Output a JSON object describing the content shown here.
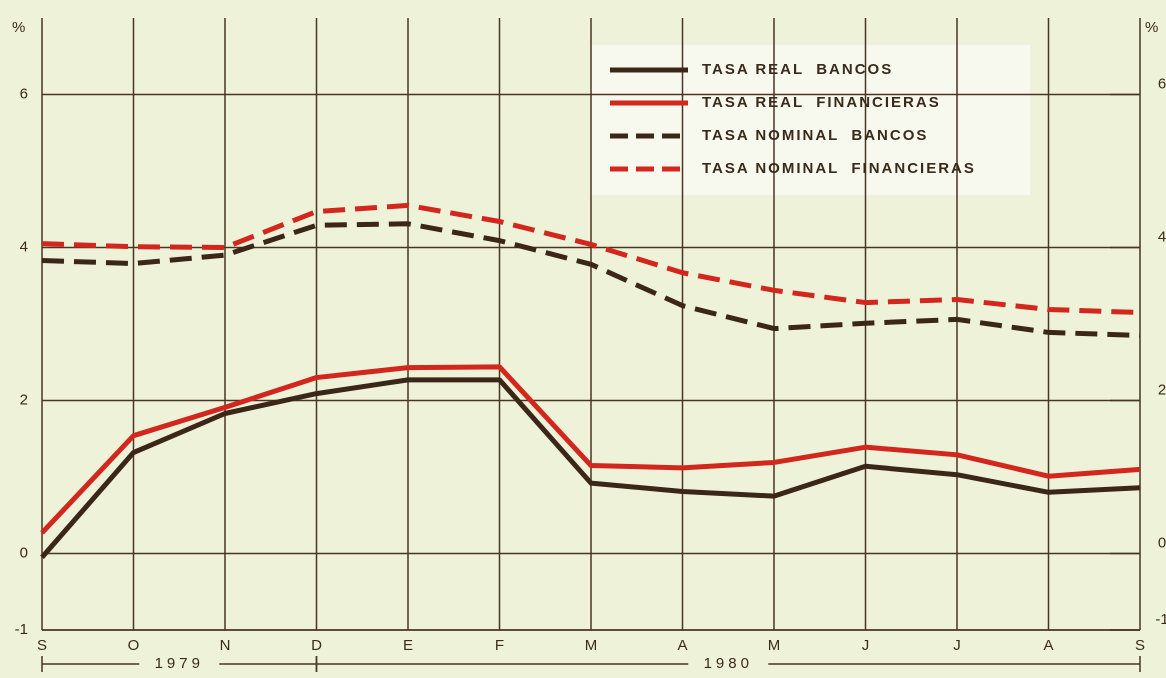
{
  "chart_data": {
    "type": "line",
    "ylabel": "%",
    "y2label": "%",
    "categories": [
      "S",
      "O",
      "N",
      "D",
      "E",
      "F",
      "M",
      "A",
      "M",
      "J",
      "J",
      "A",
      "S"
    ],
    "year_labels": [
      "1979",
      "1980"
    ],
    "ylim": [
      -1,
      7
    ],
    "yticks": [
      -1,
      0,
      2,
      4,
      6
    ],
    "y2lim": [
      -1,
      7
    ],
    "y2ticks": [
      -1,
      0,
      2,
      4,
      6
    ],
    "grid": true,
    "legend": "upper right",
    "series": [
      {
        "name": "TASA REAL  BANCOS",
        "color": "#3b2618",
        "dash": false,
        "values": [
          -0.05,
          1.32,
          1.83,
          2.09,
          2.27,
          2.27,
          0.92,
          0.81,
          0.75,
          1.14,
          1.03,
          0.8,
          0.86
        ]
      },
      {
        "name": "TASA REAL  FINANCIERAS",
        "color": "#d3261c",
        "dash": false,
        "values": [
          0.27,
          1.54,
          1.91,
          2.3,
          2.43,
          2.44,
          1.15,
          1.12,
          1.19,
          1.39,
          1.29,
          1.01,
          1.1
        ]
      },
      {
        "name": "TASA NOMINAL  BANCOS",
        "color": "#3b2618",
        "dash": true,
        "values": [
          3.83,
          3.79,
          3.9,
          4.29,
          4.31,
          4.09,
          3.78,
          3.24,
          2.94,
          3.01,
          3.06,
          2.89,
          2.85
        ]
      },
      {
        "name": "TASA NOMINAL  FINANCIERAS",
        "color": "#d3261c",
        "dash": true,
        "values": [
          4.05,
          4.01,
          4.0,
          4.47,
          4.55,
          4.34,
          4.04,
          3.67,
          3.44,
          3.28,
          3.32,
          3.19,
          3.15
        ]
      }
    ]
  }
}
